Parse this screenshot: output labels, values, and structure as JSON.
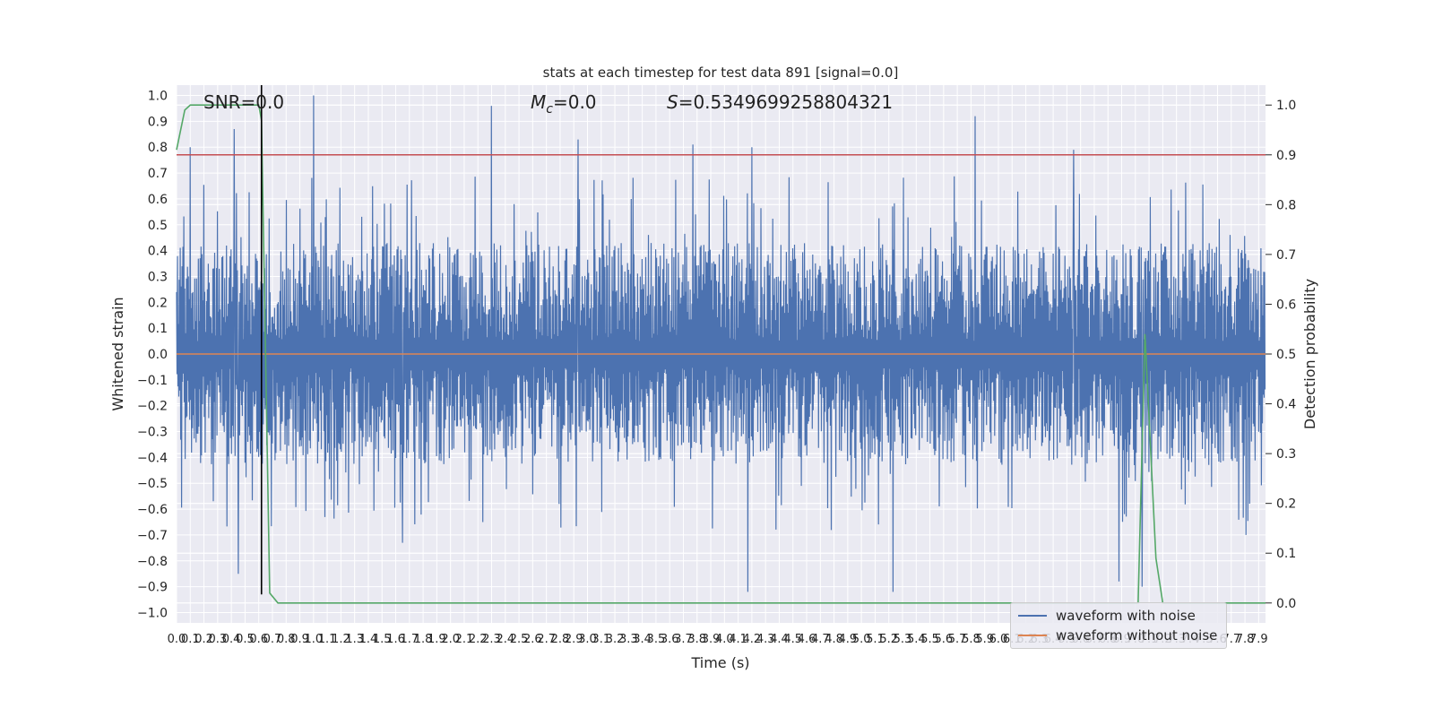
{
  "chart_data": {
    "type": "line",
    "title": "stats at each timestep for test data 891 [signal=0.0]",
    "xlabel": "Time (s)",
    "ylabel": "Whitened strain",
    "y2label": "Detection probability",
    "xlim": [
      0,
      7.95
    ],
    "ylim": [
      -1.04,
      1.04
    ],
    "y2lim": [
      -0.04,
      1.04
    ],
    "grid": true,
    "legend_position": "lower-right",
    "x_ticks": [
      "0.0",
      "0.1",
      "0.2",
      "0.3",
      "0.4",
      "0.5",
      "0.6",
      "0.7",
      "0.8",
      "0.9",
      "1.0",
      "1.1",
      "1.2",
      "1.3",
      "1.4",
      "1.5",
      "1.6",
      "1.7",
      "1.8",
      "1.9",
      "2.0",
      "2.1",
      "2.2",
      "2.3",
      "2.4",
      "2.5",
      "2.6",
      "2.7",
      "2.8",
      "2.9",
      "3.0",
      "3.1",
      "3.2",
      "3.3",
      "3.4",
      "3.5",
      "3.6",
      "3.7",
      "3.8",
      "3.9",
      "4.0",
      "4.1",
      "4.2",
      "4.3",
      "4.4",
      "4.5",
      "4.6",
      "4.7",
      "4.8",
      "4.9",
      "5.0",
      "5.1",
      "5.2",
      "5.3",
      "5.4",
      "5.5",
      "5.6",
      "5.7",
      "5.8",
      "5.9",
      "6.0",
      "6.1",
      "6.2",
      "6.3",
      "6.4",
      "6.5",
      "6.6",
      "6.7",
      "6.8",
      "6.9",
      "7.0",
      "7.1",
      "7.2",
      "7.3",
      "7.4",
      "7.5",
      "7.6",
      "7.7",
      "7.8",
      "7.9"
    ],
    "y_ticks": [
      "1.0",
      "0.9",
      "0.8",
      "0.7",
      "0.6",
      "0.5",
      "0.4",
      "0.3",
      "0.2",
      "0.1",
      "0.0",
      "−0.1",
      "−0.2",
      "−0.3",
      "−0.4",
      "−0.5",
      "−0.6",
      "−0.7",
      "−0.8",
      "−0.9",
      "−1.0"
    ],
    "y2_ticks": [
      "1.0",
      "0.9",
      "0.8",
      "0.7",
      "0.6",
      "0.5",
      "0.4",
      "0.3",
      "0.2",
      "0.1",
      "0.0"
    ],
    "annotations": {
      "snr": "SNR=0.0",
      "mc_symbol": "M",
      "mc_sub": "c",
      "mc_value": "=0.0",
      "s_symbol": "S",
      "s_value": "=0.5349699258804321"
    },
    "series": [
      {
        "name": "waveform with noise",
        "color": "#4c72b0",
        "note": "dense noisy whitened strain, roughly within ±0.5 with spikes",
        "spikes": [
          [
            0.42,
            0.87
          ],
          [
            0.1,
            0.8
          ],
          [
            1.0,
            1.0
          ],
          [
            2.3,
            0.96
          ],
          [
            2.93,
            0.83
          ],
          [
            3.77,
            0.81
          ],
          [
            4.2,
            0.8
          ],
          [
            5.83,
            0.92
          ],
          [
            6.55,
            0.79
          ],
          [
            0.45,
            -0.85
          ],
          [
            4.17,
            -0.92
          ],
          [
            5.23,
            -0.92
          ],
          [
            6.88,
            -0.88
          ],
          [
            7.05,
            -0.9
          ],
          [
            1.65,
            -0.73
          ]
        ]
      },
      {
        "name": "waveform without noise",
        "color": "#dd8452",
        "x": [
          0,
          7.95
        ],
        "y": [
          0.0,
          0.0
        ]
      },
      {
        "color": "#55a868",
        "axis": "right",
        "x": [
          0.0,
          0.06,
          0.1,
          0.2,
          0.3,
          0.4,
          0.5,
          0.6,
          0.62,
          0.68,
          0.74,
          1.0,
          2.0,
          3.0,
          4.0,
          5.0,
          6.0,
          6.9,
          6.97,
          7.02,
          7.07,
          7.15,
          7.2,
          7.3,
          7.95
        ],
        "y": [
          0.91,
          0.99,
          1.0,
          1.0,
          1.0,
          1.0,
          1.0,
          1.0,
          0.97,
          0.02,
          0.0,
          0.0,
          0.0,
          0.0,
          0.0,
          0.0,
          0.0,
          0.0,
          0.0,
          0.0,
          0.54,
          0.09,
          0.0,
          0.0,
          0.0
        ]
      }
    ],
    "threshold": {
      "axis": "right",
      "value": 0.9,
      "color": "#c44e52"
    },
    "marker_line": {
      "x": 0.62,
      "y_from": -0.93,
      "y_to": 1.04,
      "color": "#000000"
    }
  }
}
